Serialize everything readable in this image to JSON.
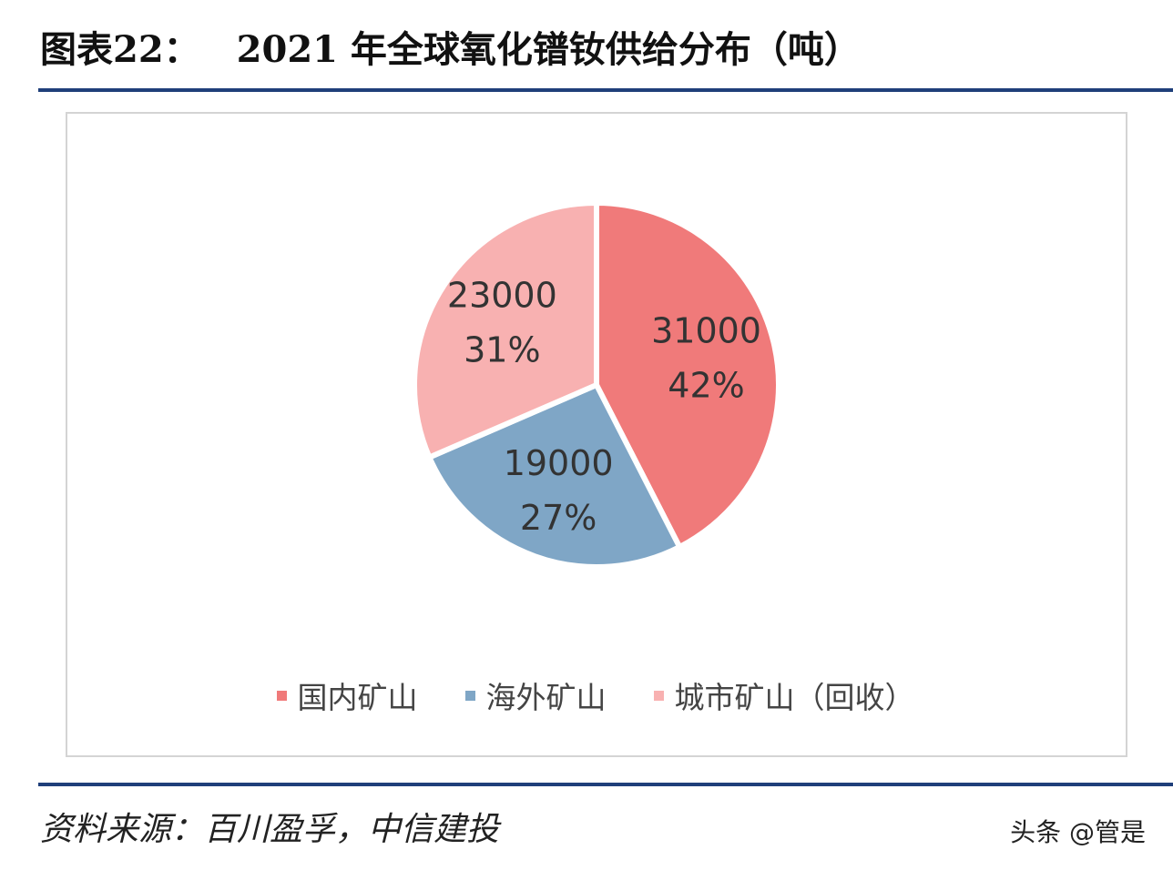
{
  "header": {
    "figure_label": "图表22：",
    "title": "2021 年全球氧化镨钕供给分布（吨）"
  },
  "chart_data": {
    "type": "pie",
    "title": "2021 年全球氧化镨钕供给分布（吨）",
    "categories": [
      "国内矿山",
      "海外矿山",
      "城市矿山（回收）"
    ],
    "values": [
      31000,
      19000,
      23000
    ],
    "percent_labels": [
      "42%",
      "27%",
      "31%"
    ],
    "value_labels": [
      "31000",
      "19000",
      "23000"
    ],
    "colors": [
      "#f07a7a",
      "#7fa6c6",
      "#f8b1b1"
    ],
    "legend_position": "bottom"
  },
  "footer": {
    "source": "资料来源：百川盈孚，中信建投",
    "watermark": "头条 @管是"
  }
}
